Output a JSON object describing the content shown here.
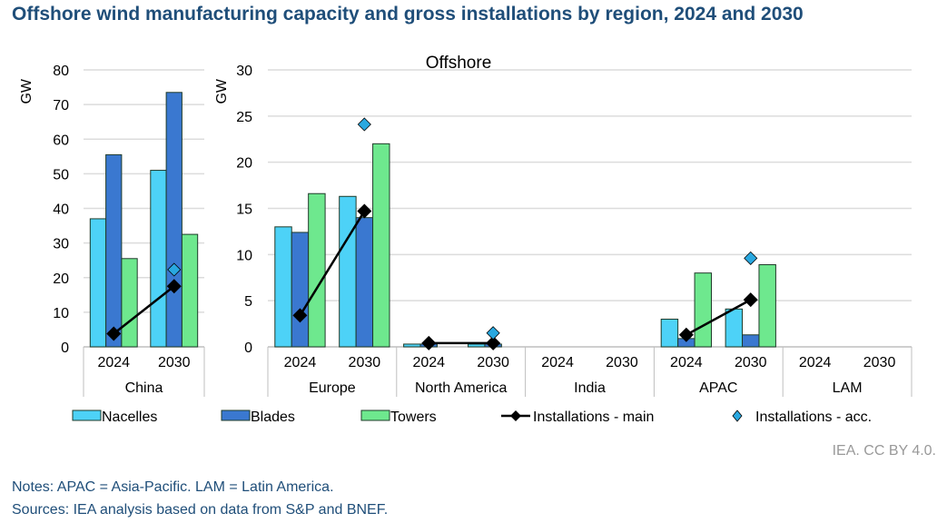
{
  "title": "Offshore wind manufacturing capacity and gross installations by region, 2024 and 2030",
  "credit": "IEA. CC BY 4.0.",
  "notes": "Notes: APAC = Asia-Pacific. LAM = Latin America.",
  "sources": "Sources: IEA analysis based on data from S&P and BNEF.",
  "colors": {
    "Nacelles": "#4dd2f7",
    "Blades": "#3a78d0",
    "Towers": "#6ee88e",
    "Installations - main": "#000000",
    "Installations - acc.": "#29a8e0"
  },
  "chart_data": [
    {
      "type": "bar",
      "title": "",
      "ylabel": "GW",
      "ylim": [
        0,
        80
      ],
      "yticks": [
        0,
        10,
        20,
        30,
        40,
        50,
        60,
        70,
        80
      ],
      "groups": [
        {
          "name": "China",
          "years": [
            "2024",
            "2030"
          ]
        }
      ],
      "series": [
        {
          "name": "Nacelles",
          "type": "bar",
          "values": [
            37,
            51
          ]
        },
        {
          "name": "Blades",
          "type": "bar",
          "values": [
            55.5,
            73.5
          ]
        },
        {
          "name": "Towers",
          "type": "bar",
          "values": [
            25.5,
            32.5
          ]
        },
        {
          "name": "Installations - main",
          "type": "line",
          "values": [
            3.8,
            17.5
          ]
        },
        {
          "name": "Installations - acc.",
          "type": "scatter",
          "values": [
            null,
            22.3
          ]
        }
      ]
    },
    {
      "type": "bar",
      "title": "Offshore",
      "ylabel": "GW",
      "ylim": [
        0,
        30
      ],
      "yticks": [
        0,
        5,
        10,
        15,
        20,
        25,
        30
      ],
      "groups": [
        {
          "name": "Europe",
          "years": [
            "2024",
            "2030"
          ]
        },
        {
          "name": "North America",
          "years": [
            "2024",
            "2030"
          ]
        },
        {
          "name": "India",
          "years": [
            "2024",
            "2030"
          ]
        },
        {
          "name": "APAC",
          "years": [
            "2024",
            "2030"
          ]
        },
        {
          "name": "LAM",
          "years": [
            "2024",
            "2030"
          ]
        }
      ],
      "series": [
        {
          "name": "Nacelles",
          "type": "bar",
          "values": [
            13,
            16.3,
            0.3,
            0.3,
            0,
            0,
            3,
            4.1,
            0,
            0
          ]
        },
        {
          "name": "Blades",
          "type": "bar",
          "values": [
            12.4,
            14,
            0.3,
            0.3,
            0,
            0,
            0.9,
            1.3,
            0,
            0
          ]
        },
        {
          "name": "Towers",
          "type": "bar",
          "values": [
            16.6,
            22,
            0,
            0,
            0,
            0,
            8,
            8.9,
            0,
            0
          ]
        },
        {
          "name": "Installations - main",
          "type": "line",
          "values": [
            3.4,
            14.7,
            0.4,
            0.4,
            null,
            null,
            1.3,
            5.1,
            null,
            null
          ]
        },
        {
          "name": "Installations - acc.",
          "type": "scatter",
          "values": [
            null,
            24.1,
            null,
            1.5,
            null,
            null,
            null,
            9.6,
            null,
            null
          ]
        }
      ]
    }
  ],
  "legend": [
    "Nacelles",
    "Blades",
    "Towers",
    "Installations - main",
    "Installations - acc."
  ]
}
